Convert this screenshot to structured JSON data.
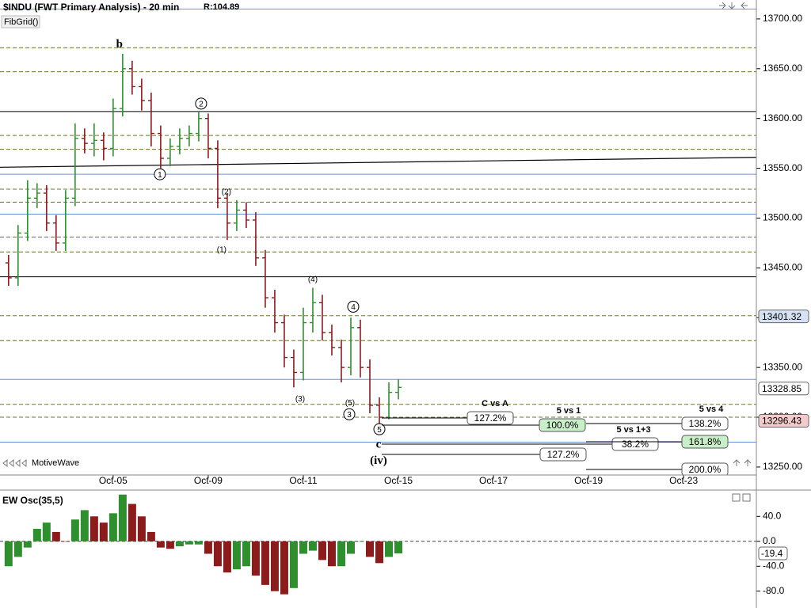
{
  "header": {
    "title": "$INDU (FWT Primary Analysis) - 20 min",
    "range": "R:104.89",
    "study": "FibGrid()",
    "brand": "MotiveWave"
  },
  "chart_data": [
    {
      "type": "ohlc",
      "x": [
        -2.2,
        -2.0,
        -1.8,
        -1.6,
        -1.4,
        -1.2,
        -1.0,
        -0.8,
        -0.6,
        -0.4,
        -0.2,
        0,
        0.2,
        0.4,
        0.6,
        0.8,
        1.0,
        1.2,
        1.4,
        1.6,
        1.8,
        2.0,
        2.2,
        2.4,
        2.6,
        2.8,
        3.0,
        3.2,
        3.4,
        3.6,
        3.8,
        4.0,
        4.2,
        4.4,
        4.6,
        4.8,
        5.0,
        5.2,
        5.4,
        5.6,
        5.8,
        6.0
      ],
      "open": [
        13455,
        13440,
        13485,
        13520,
        13525,
        13495,
        13475,
        13520,
        13580,
        13575,
        13578,
        13570,
        13610,
        13650,
        13632,
        13618,
        13585,
        13560,
        13572,
        13580,
        13585,
        13600,
        13570,
        13520,
        13495,
        13508,
        13498,
        13460,
        13420,
        13395,
        13360,
        13345,
        13395,
        13415,
        13385,
        13370,
        13350,
        13390,
        13350,
        13312,
        13300,
        13325
      ],
      "high": [
        13463,
        13493,
        13538,
        13535,
        13533,
        13503,
        13528,
        13595,
        13590,
        13595,
        13586,
        13620,
        13665,
        13658,
        13640,
        13626,
        13593,
        13580,
        13590,
        13593,
        13607,
        13605,
        13578,
        13525,
        13518,
        13516,
        13506,
        13468,
        13428,
        13403,
        13368,
        13410,
        13430,
        13423,
        13393,
        13378,
        13400,
        13398,
        13358,
        13320,
        13335,
        13338
      ],
      "low": [
        13432,
        13432,
        13477,
        13510,
        13487,
        13467,
        13467,
        13512,
        13565,
        13562,
        13558,
        13562,
        13602,
        13624,
        13608,
        13572,
        13550,
        13552,
        13564,
        13572,
        13577,
        13560,
        13510,
        13478,
        13487,
        13490,
        13452,
        13410,
        13385,
        13350,
        13330,
        13337,
        13385,
        13377,
        13362,
        13335,
        13342,
        13340,
        13304,
        13293,
        13298,
        13318
      ],
      "close": [
        13440,
        13485,
        13520,
        13525,
        13495,
        13475,
        13520,
        13580,
        13575,
        13578,
        13570,
        13610,
        13650,
        13632,
        13618,
        13585,
        13560,
        13572,
        13580,
        13585,
        13600,
        13570,
        13520,
        13495,
        13508,
        13498,
        13460,
        13420,
        13395,
        13360,
        13345,
        13395,
        13415,
        13385,
        13370,
        13350,
        13390,
        13350,
        13312,
        13300,
        13325,
        13330
      ],
      "up_color": "#2f8f2f",
      "down_color": "#8b1c1c",
      "xlim": [
        -2.38,
        13.53
      ],
      "ylim": [
        13242,
        13719
      ],
      "xticks": [
        {
          "value": 0,
          "label": "Oct-05"
        },
        {
          "value": 2,
          "label": "Oct-09"
        },
        {
          "value": 4,
          "label": "Oct-11"
        },
        {
          "value": 6,
          "label": "Oct-15"
        },
        {
          "value": 8,
          "label": "Oct-17"
        },
        {
          "value": 10,
          "label": "Oct-19"
        },
        {
          "value": 12,
          "label": "Oct-23"
        }
      ],
      "yticks": [
        {
          "value": 13250,
          "label": "13250.00"
        },
        {
          "value": 13300,
          "label": "13300.00"
        },
        {
          "value": 13350,
          "label": "13350.00"
        },
        {
          "value": 13400,
          "label": "13400.00"
        },
        {
          "value": 13450,
          "label": "13450.00"
        },
        {
          "value": 13500,
          "label": "13500.00"
        },
        {
          "value": 13550,
          "label": "13550.00"
        },
        {
          "value": 13600,
          "label": "13600.00"
        },
        {
          "value": 13650,
          "label": "13650.00"
        },
        {
          "value": 13700,
          "label": "13700.00"
        }
      ],
      "levels": [
        {
          "values": [
            13671,
            13647,
            13583,
            13569,
            13529,
            13516,
            13481,
            13466,
            13402,
            13377,
            13313,
            13300
          ],
          "color": "#6f6f33",
          "dashed": true
        },
        {
          "values": [
            13710,
            13544,
            13504,
            13338,
            13275
          ],
          "color": "#6e8fd8",
          "dashed": false
        },
        {
          "values": [
            13607,
            13441
          ],
          "color": "#000000",
          "dashed": false
        }
      ],
      "trendline": {
        "x": [
          -2.38,
          13.53
        ],
        "y": [
          13551,
          13561
        ],
        "color": "#000000"
      },
      "annotations": [
        {
          "text": "b",
          "x": 0.133,
          "y": 13674,
          "circled": false
        },
        {
          "text": "2",
          "x": 1.85,
          "y": 13615,
          "circled": true
        },
        {
          "text": "1",
          "x": 0.983,
          "y": 13544,
          "circled": true
        },
        {
          "text": "(2)",
          "x": 2.383,
          "y": 13526,
          "circled": false
        },
        {
          "text": "(1)",
          "x": 2.283,
          "y": 13468,
          "circled": false
        },
        {
          "text": "(4)",
          "x": 4.2,
          "y": 13438,
          "circled": false
        },
        {
          "text": "4",
          "x": 5.05,
          "y": 13411,
          "circled": true
        },
        {
          "text": "(3)",
          "x": 3.933,
          "y": 13318,
          "circled": false
        },
        {
          "text": "(5)",
          "x": 4.983,
          "y": 13314,
          "circled": false
        },
        {
          "text": "3",
          "x": 4.967,
          "y": 13303,
          "circled": true
        },
        {
          "text": "5",
          "x": 5.6,
          "y": 13288,
          "circled": true
        },
        {
          "text": "c",
          "x": 5.583,
          "y": 13272,
          "circled": false
        },
        {
          "text": "(iv)",
          "x": 5.583,
          "y": 13256,
          "circled": false
        }
      ],
      "price_markers": [
        {
          "value": 13401.32,
          "color": "#d6e2f2"
        },
        {
          "value": 13328.85,
          "color": "#ffffff"
        },
        {
          "value": 13296.43,
          "color": "#f2cccc"
        }
      ],
      "projections": [
        {
          "title": "C vs A",
          "labels": [
            "127.2%"
          ]
        },
        {
          "title": "5 vs 1",
          "labels": [
            "100.0%"
          ]
        },
        {
          "title": "5 vs 1+3",
          "labels": [
            "38.2%",
            "127.2%"
          ]
        },
        {
          "title": "5 vs 4",
          "labels": [
            "138.2%",
            "161.8%",
            "200.0%"
          ]
        }
      ]
    },
    {
      "type": "bar",
      "title": "EW Osc(35,5)",
      "x": [
        -2.2,
        -2.0,
        -1.8,
        -1.6,
        -1.4,
        -1.2,
        -1.0,
        -0.8,
        -0.6,
        -0.4,
        -0.2,
        0,
        0.2,
        0.4,
        0.6,
        0.8,
        1.0,
        1.2,
        1.4,
        1.6,
        1.8,
        2.0,
        2.2,
        2.4,
        2.6,
        2.8,
        3.0,
        3.2,
        3.4,
        3.6,
        3.8,
        4.0,
        4.2,
        4.4,
        4.6,
        4.8,
        5.0,
        5.2,
        5.4,
        5.6,
        5.8,
        6.0
      ],
      "values": [
        -40,
        -25,
        -10,
        20,
        30,
        15,
        0,
        35,
        50,
        40,
        30,
        45,
        75,
        60,
        40,
        15,
        -10,
        -12,
        -8,
        -5,
        -5,
        -20,
        -40,
        -50,
        -45,
        -40,
        -55,
        -70,
        -80,
        -85,
        -75,
        -20,
        -15,
        -30,
        -40,
        -40,
        -20,
        0,
        -25,
        -35,
        -25,
        -19.4
      ],
      "up_color": "#2f8f2f",
      "down_color": "#8b1c1c",
      "ylim": [
        -107,
        81
      ],
      "yticks": [
        {
          "value": 40,
          "label": "40.0"
        },
        {
          "value": 0,
          "label": "0.0"
        },
        {
          "value": -40,
          "label": "-40.0"
        },
        {
          "value": -80,
          "label": "-80.0"
        }
      ],
      "zero_line": true,
      "marker": -19.4
    }
  ]
}
